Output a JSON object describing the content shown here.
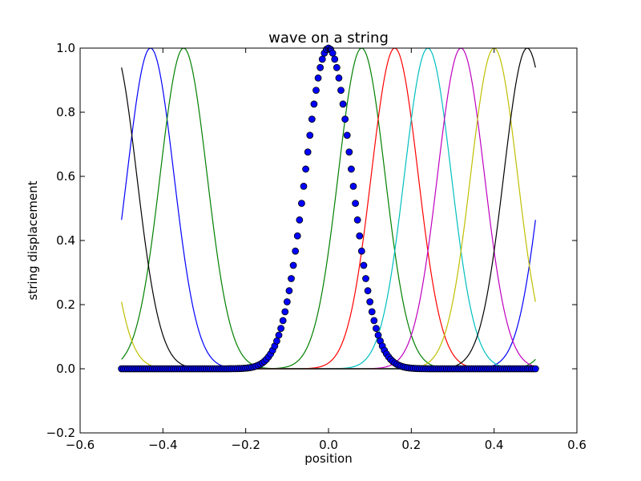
{
  "chart_data": {
    "type": "line",
    "title": "wave on a string",
    "xlabel": "position",
    "ylabel": "string displacement",
    "xlim": [
      -0.6,
      0.6
    ],
    "ylim": [
      -0.2,
      1.0
    ],
    "x_range": [
      -0.5,
      0.5
    ],
    "xticks": [
      "−0.6",
      "−0.4",
      "−0.2",
      "0.0",
      "0.2",
      "0.4",
      "0.6"
    ],
    "yticks": [
      "−0.2",
      "0.0",
      "0.2",
      "0.4",
      "0.6",
      "0.8",
      "1.0"
    ],
    "xtick_values": [
      -0.6,
      -0.4,
      -0.2,
      0.0,
      0.2,
      0.4,
      0.6
    ],
    "ytick_values": [
      -0.2,
      0.0,
      0.2,
      0.4,
      0.6,
      0.8,
      1.0
    ],
    "grid": false,
    "legend": "none",
    "pulse_width_sigma": 0.0565,
    "period": 1.0,
    "series": [
      {
        "color": "#0000ff",
        "center": -0.43
      },
      {
        "color": "#008000",
        "center": -0.35
      },
      {
        "color": "#008000",
        "center": 0.08
      },
      {
        "color": "#ff0000",
        "center": 0.16
      },
      {
        "color": "#00bfbf",
        "center": 0.24
      },
      {
        "color": "#bf00bf",
        "center": 0.32
      },
      {
        "color": "#bfbf00",
        "center": 0.4
      },
      {
        "color": "#000000",
        "center": 0.48
      }
    ],
    "marker_series": {
      "center": 0.0,
      "count": 201,
      "marker": "circle",
      "fill": "#0000ff",
      "edge": "#000000"
    }
  }
}
